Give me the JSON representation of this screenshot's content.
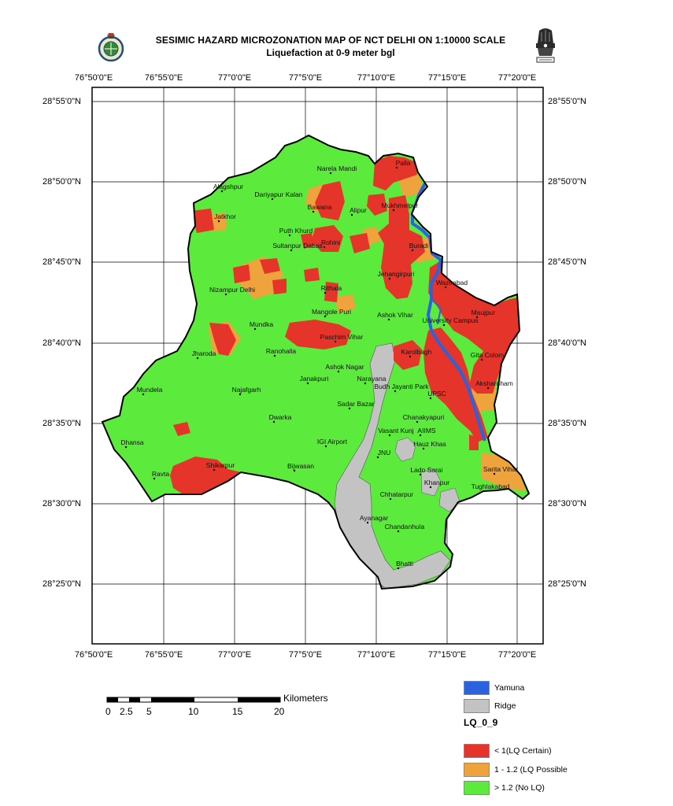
{
  "title": "SESIMIC HAZARD MICROZONATION MAP OF NCT DELHI ON 1:10000 SCALE",
  "subtitle": "Liquefaction at 0-9 meter bgl",
  "axes": {
    "longitude": [
      "76°50'0\"E",
      "76°55'0\"E",
      "77°0'0\"E",
      "77°5'0\"E",
      "77°10'0\"E",
      "77°15'0\"E",
      "77°20'0\"E"
    ],
    "latitude": [
      "28°55'0\"N",
      "28°50'0\"N",
      "28°45'0\"N",
      "28°40'0\"N",
      "28°35'0\"N",
      "28°30'0\"N",
      "28°25'0\"N"
    ]
  },
  "places": [
    "Palla",
    "Narela Mandi",
    "Alagshpur",
    "Dariyapur Kalan",
    "Bawana",
    "Alipur",
    "Mukhmelpur",
    "Jatkhor",
    "Puth Khurd",
    "Sultanpur Dabas",
    "Rohini",
    "Buradi",
    "Jehangirpuri",
    "Wazirabad",
    "Nizampur Delhi",
    "Rithala",
    "Maujpur",
    "Mangole Puri",
    "Ashok Vihar",
    "University Campus",
    "Mundka",
    "Paschim Vihar",
    "Gita Colony",
    "Jharoda",
    "Ranohalla",
    "Karolbagh",
    "Ashok Nagar",
    "Janakpuri",
    "Narayana",
    "Budh Jayanti Park",
    "Akshardham",
    "Mundela",
    "Najafgarh",
    "UPSC",
    "Sadar Bazar",
    "Chanakyapuri",
    "Dwarka",
    "Vasant Kunj",
    "AIIMS",
    "Dhansa",
    "IGI Airport",
    "JNU",
    "Hauz Khas",
    "Shikarpur",
    "Lado Sarai",
    "Sarita Vihar",
    "Ravta",
    "Bijwasan",
    "Khanpur",
    "Tughlakabad",
    "Chhatarpur",
    "Ayanagar",
    "Chandanhula",
    "Bhatti"
  ],
  "scale_bar": {
    "ticks": [
      "0",
      "2.5",
      "5",
      "10",
      "15",
      "20"
    ],
    "unit": "Kilometers"
  },
  "legend": {
    "yamuna": "Yamuna",
    "ridge": "Ridge",
    "title": "LQ_0_9",
    "certain": "< 1(LQ Certain)",
    "possible": "1 - 1.2 (LQ Possible",
    "none": "> 1.2 (No LQ)"
  },
  "colors": {
    "no_lq": "#5cea3c",
    "lq_certain": "#e5342a",
    "lq_possible": "#efa33c",
    "yamuna": "#2a63dd",
    "ridge": "#c3c3c3"
  }
}
